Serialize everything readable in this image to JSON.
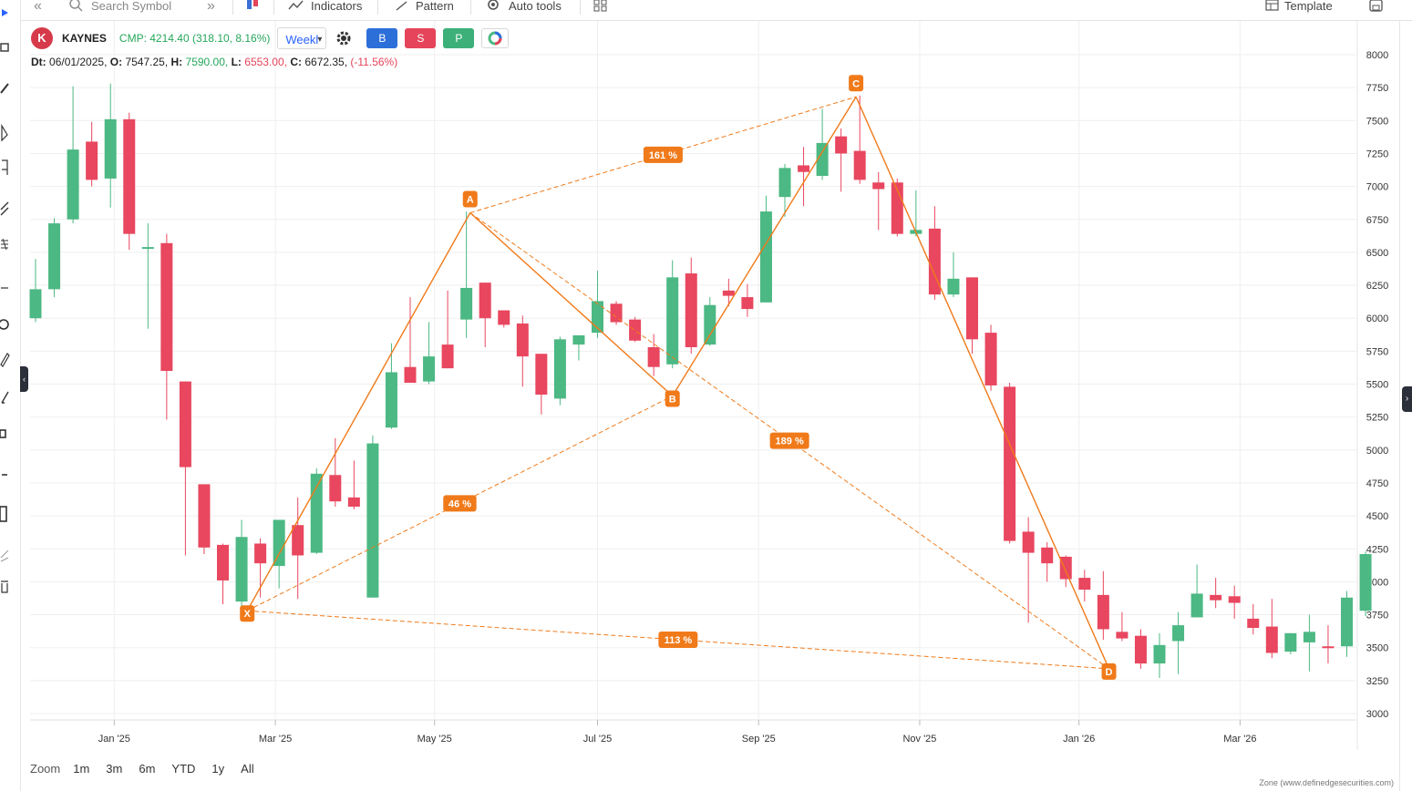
{
  "toolbar": {
    "search_placeholder": "Search Symbol",
    "indicators": "Indicators",
    "pattern": "Pattern",
    "auto_tools": "Auto tools",
    "template": "Template"
  },
  "header": {
    "logo_text": "K",
    "symbol": "KAYNES",
    "cmp": "CMP: 4214.40 (318.10, 8.16%)",
    "timeframe": "Weekl",
    "buy": "B",
    "sell": "S",
    "portfolio": "P"
  },
  "ohlc": {
    "dt_label": "Dt:",
    "dt": "06/01/2025,",
    "o_label": "O:",
    "o": "7547.25,",
    "h_label": "H:",
    "h": "7590.00,",
    "l_label": "L:",
    "l": "6553.00,",
    "c_label": "C:",
    "c": "6672.35,",
    "chg": "(-11.56%)"
  },
  "zoom": {
    "label": "Zoom",
    "options": [
      "1m",
      "3m",
      "6m",
      "YTD",
      "1y",
      "All"
    ]
  },
  "footer": "Zone (www.definedgesecurities.com)",
  "colors": {
    "up": "#4cb883",
    "down": "#e8475f",
    "pattern": "#f07a1a",
    "buy": "#2d6fd9",
    "sell": "#e5445a",
    "portfolio": "#3db07a"
  },
  "chart_data": {
    "type": "candlestick",
    "y_ticks": [
      3000,
      3250,
      3500,
      3750,
      4000,
      4250,
      4500,
      4750,
      5000,
      5250,
      5500,
      5750,
      6000,
      6250,
      6500,
      6750,
      7000,
      7250,
      7500,
      7750,
      8000
    ],
    "x_ticks": [
      "Jan '25",
      "Mar '25",
      "May '25",
      "Jul '25",
      "Sep '25",
      "Nov '25",
      "Jan '26",
      "Mar '26"
    ],
    "ylim": [
      3000,
      8000
    ],
    "grid": true,
    "candles": [
      {
        "o": 6000,
        "h": 6450,
        "l": 5970,
        "c": 6220
      },
      {
        "o": 6220,
        "h": 6760,
        "l": 6160,
        "c": 6720
      },
      {
        "o": 6750,
        "h": 7760,
        "l": 6720,
        "c": 7280
      },
      {
        "o": 7340,
        "h": 7490,
        "l": 7000,
        "c": 7050
      },
      {
        "o": 7060,
        "h": 7780,
        "l": 6840,
        "c": 7510
      },
      {
        "o": 7510,
        "h": 7560,
        "l": 6520,
        "c": 6640
      },
      {
        "o": 6540,
        "h": 6720,
        "l": 5920,
        "c": 6540
      },
      {
        "o": 6570,
        "h": 6640,
        "l": 5230,
        "c": 5600
      },
      {
        "o": 5520,
        "h": 5520,
        "l": 4200,
        "c": 4870
      },
      {
        "o": 4740,
        "h": 4740,
        "l": 4210,
        "c": 4260
      },
      {
        "o": 4280,
        "h": 4290,
        "l": 3830,
        "c": 4010
      },
      {
        "o": 3850,
        "h": 4470,
        "l": 3780,
        "c": 4340
      },
      {
        "o": 4290,
        "h": 4330,
        "l": 3880,
        "c": 4140
      },
      {
        "o": 4120,
        "h": 4460,
        "l": 3950,
        "c": 4470
      },
      {
        "o": 4430,
        "h": 4640,
        "l": 3870,
        "c": 4200
      },
      {
        "o": 4220,
        "h": 4860,
        "l": 4210,
        "c": 4820
      },
      {
        "o": 4810,
        "h": 5090,
        "l": 4570,
        "c": 4610
      },
      {
        "o": 4640,
        "h": 4920,
        "l": 4550,
        "c": 4570
      },
      {
        "o": 3880,
        "h": 5110,
        "l": 3880,
        "c": 5050
      },
      {
        "o": 5170,
        "h": 5810,
        "l": 5160,
        "c": 5590
      },
      {
        "o": 5630,
        "h": 6160,
        "l": 5520,
        "c": 5510
      },
      {
        "o": 5520,
        "h": 5970,
        "l": 5500,
        "c": 5710
      },
      {
        "o": 5800,
        "h": 6210,
        "l": 5620,
        "c": 5620
      },
      {
        "o": 5990,
        "h": 6810,
        "l": 5850,
        "c": 6230
      },
      {
        "o": 6270,
        "h": 6270,
        "l": 5780,
        "c": 6000
      },
      {
        "o": 6060,
        "h": 6060,
        "l": 5930,
        "c": 5950
      },
      {
        "o": 5960,
        "h": 6020,
        "l": 5480,
        "c": 5710
      },
      {
        "o": 5730,
        "h": 5730,
        "l": 5270,
        "c": 5420
      },
      {
        "o": 5390,
        "h": 5860,
        "l": 5340,
        "c": 5840
      },
      {
        "o": 5800,
        "h": 5870,
        "l": 5680,
        "c": 5870
      },
      {
        "o": 5890,
        "h": 6360,
        "l": 5850,
        "c": 6130
      },
      {
        "o": 6110,
        "h": 6130,
        "l": 5950,
        "c": 5970
      },
      {
        "o": 5990,
        "h": 6010,
        "l": 5820,
        "c": 5830
      },
      {
        "o": 5780,
        "h": 5880,
        "l": 5560,
        "c": 5630
      },
      {
        "o": 5650,
        "h": 6440,
        "l": 5620,
        "c": 6310
      },
      {
        "o": 6340,
        "h": 6460,
        "l": 5730,
        "c": 5780
      },
      {
        "o": 5800,
        "h": 6160,
        "l": 5790,
        "c": 6100
      },
      {
        "o": 6210,
        "h": 6300,
        "l": 6090,
        "c": 6170
      },
      {
        "o": 6160,
        "h": 6260,
        "l": 6010,
        "c": 6070
      },
      {
        "o": 6120,
        "h": 6930,
        "l": 6120,
        "c": 6810
      },
      {
        "o": 6920,
        "h": 7170,
        "l": 6770,
        "c": 7140
      },
      {
        "o": 7160,
        "h": 7300,
        "l": 6850,
        "c": 7110
      },
      {
        "o": 7080,
        "h": 7590,
        "l": 7050,
        "c": 7330
      },
      {
        "o": 7380,
        "h": 7440,
        "l": 6960,
        "c": 7250
      },
      {
        "o": 7270,
        "h": 7690,
        "l": 7020,
        "c": 7050
      },
      {
        "o": 7030,
        "h": 7110,
        "l": 6670,
        "c": 6980
      },
      {
        "o": 7030,
        "h": 7060,
        "l": 6620,
        "c": 6640
      },
      {
        "o": 6640,
        "h": 6970,
        "l": 6620,
        "c": 6670
      },
      {
        "o": 6680,
        "h": 6850,
        "l": 6140,
        "c": 6180
      },
      {
        "o": 6180,
        "h": 6500,
        "l": 6160,
        "c": 6300
      },
      {
        "o": 6310,
        "h": 6310,
        "l": 5730,
        "c": 5840
      },
      {
        "o": 5890,
        "h": 5950,
        "l": 5450,
        "c": 5490
      },
      {
        "o": 5480,
        "h": 5510,
        "l": 4290,
        "c": 4310
      },
      {
        "o": 4380,
        "h": 4490,
        "l": 3690,
        "c": 4220
      },
      {
        "o": 4260,
        "h": 4300,
        "l": 4000,
        "c": 4140
      },
      {
        "o": 4190,
        "h": 4200,
        "l": 3960,
        "c": 4020
      },
      {
        "o": 4030,
        "h": 4090,
        "l": 3850,
        "c": 3940
      },
      {
        "o": 3900,
        "h": 4080,
        "l": 3560,
        "c": 3640
      },
      {
        "o": 3620,
        "h": 3770,
        "l": 3550,
        "c": 3570
      },
      {
        "o": 3590,
        "h": 3640,
        "l": 3340,
        "c": 3380
      },
      {
        "o": 3380,
        "h": 3610,
        "l": 3270,
        "c": 3520
      },
      {
        "o": 3550,
        "h": 3770,
        "l": 3300,
        "c": 3670
      },
      {
        "o": 3730,
        "h": 4130,
        "l": 3730,
        "c": 3910
      },
      {
        "o": 3900,
        "h": 4030,
        "l": 3800,
        "c": 3860
      },
      {
        "o": 3890,
        "h": 3970,
        "l": 3720,
        "c": 3840
      },
      {
        "o": 3720,
        "h": 3830,
        "l": 3600,
        "c": 3650
      },
      {
        "o": 3660,
        "h": 3870,
        "l": 3420,
        "c": 3460
      },
      {
        "o": 3470,
        "h": 3610,
        "l": 3450,
        "c": 3610
      },
      {
        "o": 3540,
        "h": 3750,
        "l": 3320,
        "c": 3620
      },
      {
        "o": 3510,
        "h": 3670,
        "l": 3380,
        "c": 3500
      },
      {
        "o": 3510,
        "h": 3930,
        "l": 3430,
        "c": 3880
      },
      {
        "o": 3780,
        "h": 4230,
        "l": 3740,
        "c": 4210
      }
    ],
    "pattern": {
      "points": [
        {
          "label": "X",
          "value": 3780
        },
        {
          "label": "A",
          "value": 6800
        },
        {
          "label": "B",
          "value": 5410
        },
        {
          "label": "C",
          "value": 7680
        },
        {
          "label": "D",
          "value": 3340
        }
      ],
      "ratios": [
        {
          "text": "161 %"
        },
        {
          "text": "46 %"
        },
        {
          "text": "189 %"
        },
        {
          "text": "113 %"
        }
      ]
    }
  }
}
